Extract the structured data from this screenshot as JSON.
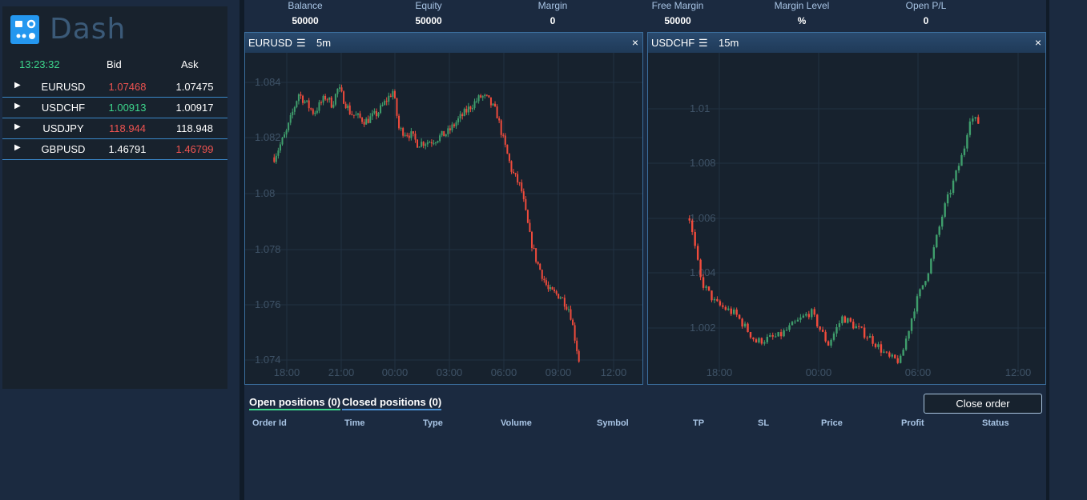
{
  "app": {
    "name": "Dash"
  },
  "quotes": {
    "time": "13:23:32",
    "headers": {
      "bid": "Bid",
      "ask": "Ask"
    },
    "rows": [
      {
        "symbol": "EURUSD",
        "bid": "1.07468",
        "ask": "1.07475",
        "bid_color": "red",
        "ask_color": "white"
      },
      {
        "symbol": "USDCHF",
        "bid": "1.00913",
        "ask": "1.00917",
        "bid_color": "green",
        "ask_color": "white"
      },
      {
        "symbol": "USDJPY",
        "bid": "118.944",
        "ask": "118.948",
        "bid_color": "red",
        "ask_color": "white"
      },
      {
        "symbol": "GBPUSD",
        "bid": "1.46791",
        "ask": "1.46799",
        "bid_color": "white",
        "ask_color": "red"
      }
    ]
  },
  "account": [
    {
      "label": "Balance",
      "value": "50000"
    },
    {
      "label": "Equity",
      "value": "50000"
    },
    {
      "label": "Margin",
      "value": "0"
    },
    {
      "label": "Free Margin",
      "value": "50000"
    },
    {
      "label": "Margin Level",
      "value": "%"
    },
    {
      "label": "Open P/L",
      "value": "0"
    }
  ],
  "charts": [
    {
      "symbol": "EURUSD",
      "menu_icon": "hamburger-menu-icon",
      "timeframe": "5m",
      "close_label": "×",
      "chart_data": {
        "type": "candlestick",
        "x_ticks": [
          "18:00",
          "21:00",
          "00:00",
          "03:00",
          "06:00",
          "09:00",
          "12:00"
        ],
        "y_ticks": [
          "1.084",
          "1.082",
          "1.08",
          "1.078",
          "1.076",
          "1.074"
        ],
        "ylim": [
          1.0735,
          1.0845
        ],
        "path": [
          [
            0,
            1.0813
          ],
          [
            0.04,
            1.0822
          ],
          [
            0.08,
            1.0836
          ],
          [
            0.13,
            1.0829
          ],
          [
            0.17,
            1.0835
          ],
          [
            0.19,
            1.0832
          ],
          [
            0.21,
            1.0838
          ],
          [
            0.25,
            1.0829
          ],
          [
            0.3,
            1.0826
          ],
          [
            0.34,
            1.0829
          ],
          [
            0.39,
            1.0837
          ],
          [
            0.41,
            1.0823
          ],
          [
            0.45,
            1.0821
          ],
          [
            0.47,
            1.0818
          ],
          [
            0.52,
            1.0819
          ],
          [
            0.57,
            1.0822
          ],
          [
            0.6,
            1.0826
          ],
          [
            0.65,
            1.0832
          ],
          [
            0.68,
            1.0835
          ],
          [
            0.7,
            1.0834
          ],
          [
            0.73,
            1.0829
          ],
          [
            0.75,
            1.082
          ],
          [
            0.78,
            1.0808
          ],
          [
            0.81,
            1.0802
          ],
          [
            0.84,
            1.0784
          ],
          [
            0.86,
            1.0776
          ],
          [
            0.9,
            1.0765
          ],
          [
            0.94,
            1.0763
          ],
          [
            0.97,
            1.0758
          ],
          [
            1.0,
            1.074
          ]
        ]
      }
    },
    {
      "symbol": "USDCHF",
      "menu_icon": "hamburger-menu-icon",
      "timeframe": "15m",
      "close_label": "×",
      "chart_data": {
        "type": "candlestick",
        "x_ticks": [
          "18:00",
          "00:00",
          "06:00",
          "12:00"
        ],
        "y_ticks": [
          "1.01",
          "1.008",
          "1.006",
          "1.004",
          "1.002"
        ],
        "ylim": [
          1.0002,
          1.0108
        ],
        "path": [
          [
            0,
            1.006
          ],
          [
            0.04,
            1.0037
          ],
          [
            0.09,
            1.0029
          ],
          [
            0.16,
            1.0025
          ],
          [
            0.23,
            1.0015
          ],
          [
            0.31,
            1.0017
          ],
          [
            0.37,
            1.0022
          ],
          [
            0.42,
            1.0026
          ],
          [
            0.48,
            1.0014
          ],
          [
            0.53,
            1.0024
          ],
          [
            0.58,
            1.002
          ],
          [
            0.63,
            1.0016
          ],
          [
            0.69,
            1.0009
          ],
          [
            0.73,
            1.0008
          ],
          [
            0.78,
            1.0028
          ],
          [
            0.83,
            1.0042
          ],
          [
            0.88,
            1.0063
          ],
          [
            0.91,
            1.0072
          ],
          [
            0.95,
            1.0085
          ],
          [
            0.97,
            1.0097
          ],
          [
            1.0,
            1.0095
          ]
        ]
      }
    }
  ],
  "positions": {
    "tabs": {
      "open": "Open positions (0)",
      "closed": "Closed positions (0)"
    },
    "close_order": "Close order",
    "columns": [
      "Order Id",
      "Time",
      "Type",
      "Volume",
      "Symbol",
      "TP",
      "SL",
      "Price",
      "Profit",
      "Status"
    ]
  },
  "colors": {
    "up": "#3f9e6c",
    "down": "#ef4b3c",
    "background": "#1b2a40",
    "panel": "#18222d"
  }
}
